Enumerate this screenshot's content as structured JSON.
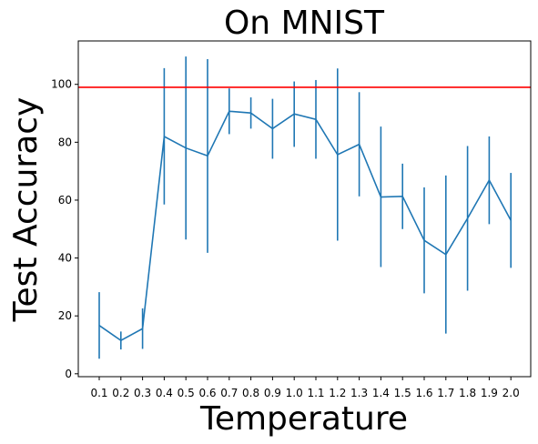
{
  "chart_data": {
    "type": "line",
    "title": "On MNIST",
    "xlabel": "Temperature",
    "ylabel": "Test Accuracy",
    "categories": [
      "0.1",
      "0.2",
      "0.3",
      "0.4",
      "0.5",
      "0.6",
      "0.7",
      "0.8",
      "0.9",
      "1.0",
      "1.1",
      "1.2",
      "1.3",
      "1.4",
      "1.5",
      "1.6",
      "1.7",
      "1.8",
      "1.9",
      "2.0"
    ],
    "series": [
      {
        "color": "#1f77b4",
        "values": [
          16.7,
          11.5,
          15.6,
          82.0,
          78.0,
          75.3,
          90.7,
          90.1,
          84.7,
          89.8,
          87.9,
          75.7,
          79.3,
          61.1,
          61.3,
          46.1,
          41.2,
          53.7,
          66.9,
          53.0
        ],
        "err_low": [
          5.2,
          8.4,
          8.6,
          58.5,
          46.4,
          41.8,
          82.8,
          84.7,
          74.3,
          78.4,
          74.3,
          46.0,
          61.3,
          36.9,
          50.0,
          27.8,
          13.9,
          28.7,
          51.7,
          36.6
        ],
        "err_high": [
          28.2,
          14.6,
          22.6,
          105.6,
          109.6,
          108.7,
          98.6,
          95.5,
          95.0,
          101.0,
          101.5,
          105.5,
          97.3,
          85.4,
          72.6,
          64.4,
          68.5,
          78.7,
          82.0,
          69.4
        ]
      }
    ],
    "reference_line": {
      "y": 99.0,
      "color": "#ff0000"
    },
    "yticks": [
      0,
      20,
      40,
      60,
      80,
      100
    ],
    "ylim": [
      -1,
      115
    ],
    "grid": false
  }
}
